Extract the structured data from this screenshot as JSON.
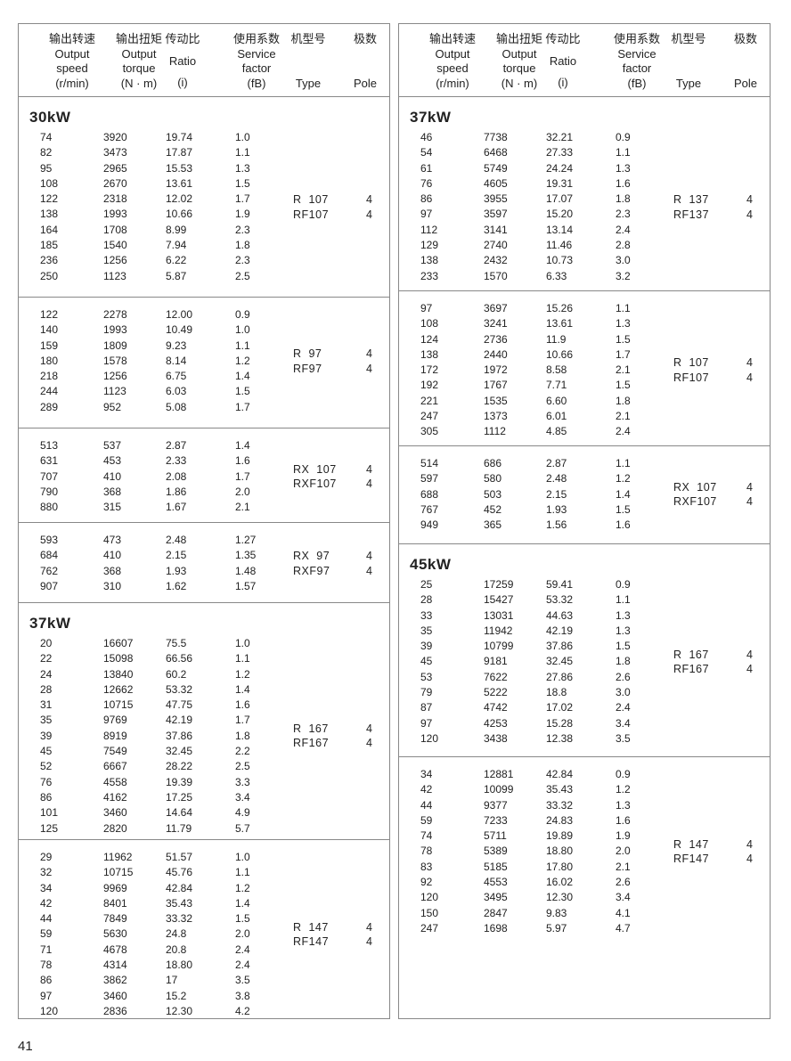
{
  "header": {
    "columns": [
      {
        "zh": "输出转速",
        "en": [
          "Output",
          "speed",
          "(r/min)"
        ]
      },
      {
        "zh": "输出扭矩",
        "en": [
          "Output",
          "torque",
          "(N · m)"
        ]
      },
      {
        "zh": "传动比",
        "en": [
          "Ratio",
          "(i)"
        ]
      },
      {
        "zh": "使用系数",
        "en": [
          "Service",
          "factor",
          "(fB)"
        ]
      },
      {
        "zh": "机型号",
        "en": [
          "Type"
        ]
      },
      {
        "zh": "极数",
        "en": [
          "Pole"
        ]
      }
    ]
  },
  "left": [
    {
      "title": "30kW",
      "types": [
        "R  107",
        "RF107"
      ],
      "poles": [
        "4",
        "4"
      ],
      "rows": [
        [
          "74",
          "3920",
          "19.74",
          "1.0"
        ],
        [
          "82",
          "3473",
          "17.87",
          "1.1"
        ],
        [
          "95",
          "2965",
          "15.53",
          "1.3"
        ],
        [
          "108",
          "2670",
          "13.61",
          "1.5"
        ],
        [
          "122",
          "2318",
          "12.02",
          "1.7"
        ],
        [
          "138",
          "1993",
          "10.66",
          "1.9"
        ],
        [
          "164",
          "1708",
          "8.99",
          "2.3"
        ],
        [
          "185",
          "1540",
          "7.94",
          "1.8"
        ],
        [
          "236",
          "1256",
          "6.22",
          "2.3"
        ],
        [
          "250",
          "1123",
          "5.87",
          "2.5"
        ]
      ]
    },
    {
      "title": "",
      "types": [
        "R  97",
        "RF97"
      ],
      "poles": [
        "4",
        "4"
      ],
      "rows": [
        [
          "122",
          "2278",
          "12.00",
          "0.9"
        ],
        [
          "140",
          "1993",
          "10.49",
          "1.0"
        ],
        [
          "159",
          "1809",
          "9.23",
          "1.1"
        ],
        [
          "180",
          "1578",
          "8.14",
          "1.2"
        ],
        [
          "218",
          "1256",
          "6.75",
          "1.4"
        ],
        [
          "244",
          "1123",
          "6.03",
          "1.5"
        ],
        [
          "289",
          "952",
          "5.08",
          "1.7"
        ]
      ]
    },
    {
      "title": "",
      "types": [
        "RX  107",
        "RXF107"
      ],
      "poles": [
        "4",
        "4"
      ],
      "rows": [
        [
          "513",
          "537",
          "2.87",
          "1.4"
        ],
        [
          "631",
          "453",
          "2.33",
          "1.6"
        ],
        [
          "707",
          "410",
          "2.08",
          "1.7"
        ],
        [
          "790",
          "368",
          "1.86",
          "2.0"
        ],
        [
          "880",
          "315",
          "1.67",
          "2.1"
        ]
      ]
    },
    {
      "title": "",
      "types": [
        "RX  97",
        "RXF97"
      ],
      "poles": [
        "4",
        "4"
      ],
      "rows": [
        [
          "593",
          "473",
          "2.48",
          "1.27"
        ],
        [
          "684",
          "410",
          "2.15",
          "1.35"
        ],
        [
          "762",
          "368",
          "1.93",
          "1.48"
        ],
        [
          "907",
          "310",
          "1.62",
          "1.57"
        ]
      ]
    },
    {
      "title": "37kW",
      "types": [
        "R  167",
        "RF167"
      ],
      "poles": [
        "4",
        "4"
      ],
      "rows": [
        [
          "20",
          "16607",
          "75.5",
          "1.0"
        ],
        [
          "22",
          "15098",
          "66.56",
          "1.1"
        ],
        [
          "24",
          "13840",
          "60.2",
          "1.2"
        ],
        [
          "28",
          "12662",
          "53.32",
          "1.4"
        ],
        [
          "31",
          "10715",
          "47.75",
          "1.6"
        ],
        [
          "35",
          "9769",
          "42.19",
          "1.7"
        ],
        [
          "39",
          "8919",
          "37.86",
          "1.8"
        ],
        [
          "45",
          "7549",
          "32.45",
          "2.2"
        ],
        [
          "52",
          "6667",
          "28.22",
          "2.5"
        ],
        [
          "76",
          "4558",
          "19.39",
          "3.3"
        ],
        [
          "86",
          "4162",
          "17.25",
          "3.4"
        ],
        [
          "101",
          "3460",
          "14.64",
          "4.9"
        ],
        [
          "125",
          "2820",
          "11.79",
          "5.7"
        ]
      ]
    },
    {
      "title": "",
      "types": [
        "R  147",
        "RF147"
      ],
      "poles": [
        "4",
        "4"
      ],
      "rows": [
        [
          "29",
          "11962",
          "51.57",
          "1.0"
        ],
        [
          "32",
          "10715",
          "45.76",
          "1.1"
        ],
        [
          "34",
          "9969",
          "42.84",
          "1.2"
        ],
        [
          "42",
          "8401",
          "35.43",
          "1.4"
        ],
        [
          "44",
          "7849",
          "33.32",
          "1.5"
        ],
        [
          "59",
          "5630",
          "24.8",
          "2.0"
        ],
        [
          "71",
          "4678",
          "20.8",
          "2.4"
        ],
        [
          "78",
          "4314",
          "18.80",
          "2.4"
        ],
        [
          "86",
          "3862",
          "17",
          "3.5"
        ],
        [
          "97",
          "3460",
          "15.2",
          "3.8"
        ],
        [
          "120",
          "2836",
          "12.30",
          "4.2"
        ]
      ]
    }
  ],
  "right": [
    {
      "title": "37kW",
      "types": [
        "R  137",
        "RF137"
      ],
      "poles": [
        "4",
        "4"
      ],
      "rows": [
        [
          "46",
          "7738",
          "32.21",
          "0.9"
        ],
        [
          "54",
          "6468",
          "27.33",
          "1.1"
        ],
        [
          "61",
          "5749",
          "24.24",
          "1.3"
        ],
        [
          "76",
          "4605",
          "19.31",
          "1.6"
        ],
        [
          "86",
          "3955",
          "17.07",
          "1.8"
        ],
        [
          "97",
          "3597",
          "15.20",
          "2.3"
        ],
        [
          "112",
          "3141",
          "13.14",
          "2.4"
        ],
        [
          "129",
          "2740",
          "11.46",
          "2.8"
        ],
        [
          "138",
          "2432",
          "10.73",
          "3.0"
        ],
        [
          "233",
          "1570",
          "6.33",
          "3.2"
        ]
      ]
    },
    {
      "title": "",
      "types": [
        "R  107",
        "RF107"
      ],
      "poles": [
        "4",
        "4"
      ],
      "rows": [
        [
          "97",
          "3697",
          "15.26",
          "1.1"
        ],
        [
          "108",
          "3241",
          "13.61",
          "1.3"
        ],
        [
          "124",
          "2736",
          "11.9",
          "1.5"
        ],
        [
          "138",
          "2440",
          "10.66",
          "1.7"
        ],
        [
          "172",
          "1972",
          "8.58",
          "2.1"
        ],
        [
          "192",
          "1767",
          "7.71",
          "1.5"
        ],
        [
          "221",
          "1535",
          "6.60",
          "1.8"
        ],
        [
          "247",
          "1373",
          "6.01",
          "2.1"
        ],
        [
          "305",
          "1112",
          "4.85",
          "2.4"
        ]
      ]
    },
    {
      "title": "",
      "types": [
        "RX  107",
        "RXF107"
      ],
      "poles": [
        "4",
        "4"
      ],
      "rows": [
        [
          "514",
          "686",
          "2.87",
          "1.1"
        ],
        [
          "597",
          "580",
          "2.48",
          "1.2"
        ],
        [
          "688",
          "503",
          "2.15",
          "1.4"
        ],
        [
          "767",
          "452",
          "1.93",
          "1.5"
        ],
        [
          "949",
          "365",
          "1.56",
          "1.6"
        ]
      ]
    },
    {
      "title": "45kW",
      "types": [
        "R  167",
        "RF167"
      ],
      "poles": [
        "4",
        "4"
      ],
      "rows": [
        [
          "25",
          "17259",
          "59.41",
          "0.9"
        ],
        [
          "28",
          "15427",
          "53.32",
          "1.1"
        ],
        [
          "33",
          "13031",
          "44.63",
          "1.3"
        ],
        [
          "35",
          "11942",
          "42.19",
          "1.3"
        ],
        [
          "39",
          "10799",
          "37.86",
          "1.5"
        ],
        [
          "45",
          "9181",
          "32.45",
          "1.8"
        ],
        [
          "53",
          "7622",
          "27.86",
          "2.6"
        ],
        [
          "79",
          "5222",
          "18.8",
          "3.0"
        ],
        [
          "87",
          "4742",
          "17.02",
          "2.4"
        ],
        [
          "97",
          "4253",
          "15.28",
          "3.4"
        ],
        [
          "120",
          "3438",
          "12.38",
          "3.5"
        ]
      ]
    },
    {
      "title": "",
      "types": [
        "R  147",
        "RF147"
      ],
      "poles": [
        "4",
        "4"
      ],
      "rows": [
        [
          "34",
          "12881",
          "42.84",
          "0.9"
        ],
        [
          "42",
          "10099",
          "35.43",
          "1.2"
        ],
        [
          "44",
          "9377",
          "33.32",
          "1.3"
        ],
        [
          "59",
          "7233",
          "24.83",
          "1.6"
        ],
        [
          "74",
          "5711",
          "19.89",
          "1.9"
        ],
        [
          "78",
          "5389",
          "18.80",
          "2.0"
        ],
        [
          "83",
          "5185",
          "17.80",
          "2.1"
        ],
        [
          "92",
          "4553",
          "16.02",
          "2.6"
        ],
        [
          "120",
          "3495",
          "12.30",
          "3.4"
        ],
        [
          "150",
          "2847",
          "9.83",
          "4.1"
        ],
        [
          "247",
          "1698",
          "5.97",
          "4.7"
        ]
      ]
    }
  ],
  "page_number": "41"
}
